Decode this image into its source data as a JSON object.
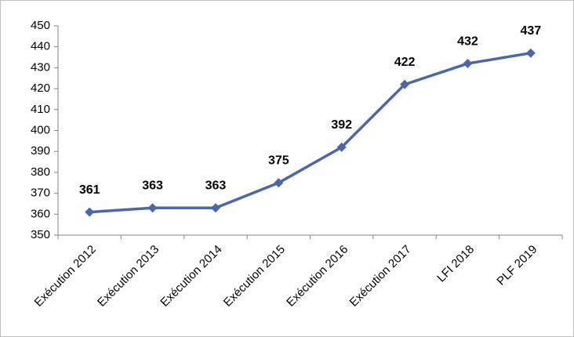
{
  "chart_data": {
    "type": "line",
    "categories": [
      "Exécution 2012",
      "Exécution 2013",
      "Exécution 2014",
      "Exécution 2015",
      "Exécution 2016",
      "Exécution 2017",
      "LFI 2018",
      "PLF 2019"
    ],
    "series": [
      {
        "color": "#4a66ac",
        "values": [
          361,
          363,
          363,
          375,
          392,
          422,
          432,
          437
        ]
      }
    ],
    "ylim": [
      350,
      450
    ],
    "yticks": [
      350,
      360,
      370,
      380,
      390,
      400,
      410,
      420,
      430,
      440,
      450
    ],
    "grid": false
  }
}
